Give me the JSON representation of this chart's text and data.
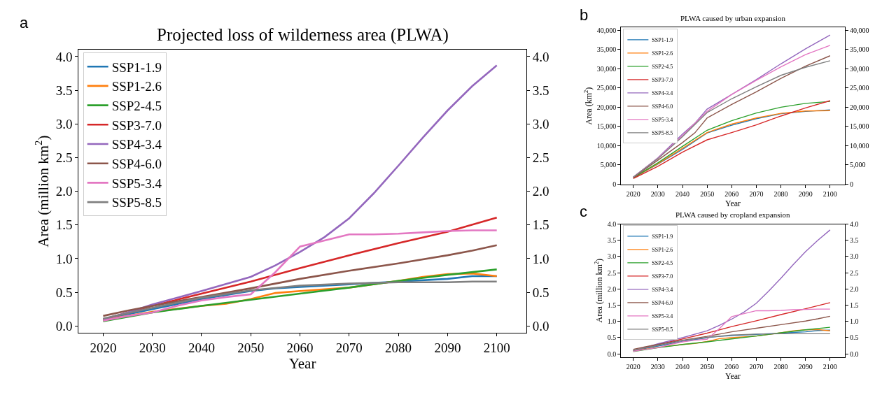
{
  "chart_data": [
    {
      "type": "line",
      "title": "Projected loss of wilderness area (PLWA)",
      "xlabel": "Year",
      "ylabel": "Area (million km$^{2}$)",
      "annotations": [
        "a"
      ],
      "legend": "top left",
      "xlim": [
        2015,
        2106
      ],
      "xticks": [
        2020,
        2030,
        2040,
        2050,
        2060,
        2070,
        2080,
        2090,
        2100
      ],
      "ylim": [
        -0.1,
        4.1
      ],
      "yticks": [
        {
          "value": 0,
          "label": "0.0"
        },
        {
          "value": 0.5,
          "label": "0.5"
        },
        {
          "value": 1,
          "label": "1.0"
        },
        {
          "value": 1.5,
          "label": "1.5"
        },
        {
          "value": 2,
          "label": "2.0"
        },
        {
          "value": 2.5,
          "label": "2.5"
        },
        {
          "value": 3,
          "label": "3.0"
        },
        {
          "value": 3.5,
          "label": "3.5"
        },
        {
          "value": 4,
          "label": "4.0"
        }
      ],
      "y2lim": [
        -0.1,
        4.1
      ],
      "y2ticks": [
        {
          "value": 0,
          "label": "0.0"
        },
        {
          "value": 0.5,
          "label": "0.5"
        },
        {
          "value": 1,
          "label": "1.0"
        },
        {
          "value": 1.5,
          "label": "1.5"
        },
        {
          "value": 2,
          "label": "2.0"
        },
        {
          "value": 2.5,
          "label": "2.5"
        },
        {
          "value": 3,
          "label": "3.0"
        },
        {
          "value": 3.5,
          "label": "3.5"
        },
        {
          "value": 4,
          "label": "4.0"
        }
      ],
      "series": [
        {
          "name": "SSP1-1.9",
          "color": "#1f77b4",
          "x": [
            2020,
            2030,
            2040,
            2050,
            2055,
            2060,
            2070,
            2080,
            2090,
            2095,
            2100
          ],
          "values": [
            0.1,
            0.25,
            0.4,
            0.52,
            0.56,
            0.58,
            0.62,
            0.66,
            0.7,
            0.74,
            0.74
          ]
        },
        {
          "name": "SSP1-2.6",
          "color": "#ff7f0e",
          "x": [
            2020,
            2030,
            2040,
            2045,
            2050,
            2055,
            2060,
            2070,
            2080,
            2085,
            2090,
            2095,
            2100
          ],
          "values": [
            0.09,
            0.21,
            0.3,
            0.33,
            0.4,
            0.49,
            0.52,
            0.57,
            0.67,
            0.73,
            0.77,
            0.78,
            0.74
          ]
        },
        {
          "name": "SSP2-4.5",
          "color": "#2ca02c",
          "x": [
            2020,
            2030,
            2040,
            2050,
            2060,
            2070,
            2080,
            2090,
            2100
          ],
          "values": [
            0.07,
            0.2,
            0.3,
            0.39,
            0.48,
            0.57,
            0.67,
            0.76,
            0.84
          ]
        },
        {
          "name": "SSP3-7.0",
          "color": "#d62728",
          "x": [
            2020,
            2030,
            2040,
            2050,
            2060,
            2070,
            2080,
            2090,
            2100
          ],
          "values": [
            0.1,
            0.3,
            0.48,
            0.66,
            0.86,
            1.05,
            1.23,
            1.4,
            1.61
          ]
        },
        {
          "name": "SSP4-3.4",
          "color": "#9467bd",
          "x": [
            2020,
            2025,
            2030,
            2040,
            2050,
            2055,
            2060,
            2065,
            2070,
            2075,
            2080,
            2085,
            2090,
            2095,
            2100
          ],
          "values": [
            0.1,
            0.2,
            0.32,
            0.52,
            0.73,
            0.9,
            1.1,
            1.32,
            1.6,
            1.97,
            2.38,
            2.8,
            3.2,
            3.56,
            3.87
          ]
        },
        {
          "name": "SSP4-6.0",
          "color": "#8c564b",
          "x": [
            2020,
            2025,
            2030,
            2040,
            2050,
            2055,
            2060,
            2070,
            2080,
            2090,
            2095,
            2100
          ],
          "values": [
            0.15,
            0.23,
            0.3,
            0.43,
            0.56,
            0.63,
            0.7,
            0.82,
            0.93,
            1.05,
            1.12,
            1.2
          ]
        },
        {
          "name": "SSP5-3.4",
          "color": "#e377c2",
          "x": [
            2020,
            2025,
            2030,
            2035,
            2040,
            2045,
            2050,
            2055,
            2060,
            2065,
            2070,
            2075,
            2080,
            2085,
            2090,
            2095,
            2100
          ],
          "values": [
            0.08,
            0.15,
            0.2,
            0.3,
            0.38,
            0.43,
            0.47,
            0.8,
            1.18,
            1.27,
            1.36,
            1.36,
            1.37,
            1.39,
            1.41,
            1.42,
            1.42
          ]
        },
        {
          "name": "SSP5-8.5",
          "color": "#7f7f7f",
          "x": [
            2020,
            2030,
            2040,
            2050,
            2060,
            2070,
            2080,
            2090,
            2095,
            2100
          ],
          "values": [
            0.11,
            0.27,
            0.42,
            0.53,
            0.6,
            0.63,
            0.65,
            0.65,
            0.66,
            0.66
          ]
        }
      ]
    },
    {
      "type": "line",
      "title": "PLWA caused by urban expansion",
      "xlabel": "Year",
      "ylabel": "Area (km$^{2}$)",
      "annotations": [
        "b"
      ],
      "legend": "top left",
      "xlim": [
        2015,
        2106
      ],
      "xticks": [
        2020,
        2030,
        2040,
        2050,
        2060,
        2070,
        2080,
        2090,
        2100
      ],
      "ylim": [
        -200,
        40800
      ],
      "yticks": [
        0,
        {
          "value": 5000,
          "label": "5,000"
        },
        {
          "value": 10000,
          "label": "10,000"
        },
        {
          "value": 15000,
          "label": "15,000"
        },
        {
          "value": 20000,
          "label": "20,000"
        },
        {
          "value": 25000,
          "label": "25,000"
        },
        {
          "value": 30000,
          "label": "30,000"
        },
        {
          "value": 35000,
          "label": "35,000"
        },
        {
          "value": 40000,
          "label": "40,000"
        }
      ],
      "y2lim": [
        -200,
        40800
      ],
      "y2ticks": [
        0,
        {
          "value": 5000,
          "label": "5,000"
        },
        {
          "value": 10000,
          "label": "10,000"
        },
        {
          "value": 15000,
          "label": "15,000"
        },
        {
          "value": 20000,
          "label": "20,000"
        },
        {
          "value": 25000,
          "label": "25,000"
        },
        {
          "value": 30000,
          "label": "30,000"
        },
        {
          "value": 35000,
          "label": "35,000"
        },
        {
          "value": 40000,
          "label": "40,000"
        }
      ],
      "series": [
        {
          "name": "SSP1-1.9",
          "color": "#1f77b4",
          "x": [
            2020,
            2030,
            2040,
            2050,
            2060,
            2070,
            2080,
            2090,
            2100
          ],
          "values": [
            1600,
            5200,
            9000,
            13300,
            15300,
            17000,
            18300,
            18900,
            19300
          ]
        },
        {
          "name": "SSP1-2.6",
          "color": "#ff7f0e",
          "x": [
            2020,
            2030,
            2040,
            2050,
            2060,
            2070,
            2080,
            2090,
            2100
          ],
          "values": [
            1600,
            5300,
            9300,
            13400,
            15600,
            17200,
            18400,
            19000,
            19100
          ]
        },
        {
          "name": "SSP2-4.5",
          "color": "#2ca02c",
          "x": [
            2020,
            2030,
            2040,
            2050,
            2060,
            2070,
            2080,
            2090,
            2100
          ],
          "values": [
            1600,
            5500,
            9800,
            14000,
            16500,
            18500,
            20000,
            21000,
            21500
          ]
        },
        {
          "name": "SSP3-7.0",
          "color": "#d62728",
          "x": [
            2020,
            2030,
            2040,
            2050,
            2060,
            2070,
            2080,
            2090,
            2100
          ],
          "values": [
            1400,
            4600,
            8300,
            11500,
            13400,
            15400,
            17700,
            19800,
            21700
          ]
        },
        {
          "name": "SSP4-3.4",
          "color": "#9467bd",
          "x": [
            2020,
            2030,
            2040,
            2045,
            2050,
            2060,
            2070,
            2080,
            2090,
            2100
          ],
          "values": [
            1800,
            6800,
            13000,
            15800,
            19500,
            23300,
            27200,
            31300,
            35200,
            38800
          ]
        },
        {
          "name": "SSP4-6.0",
          "color": "#8c564b",
          "x": [
            2020,
            2030,
            2040,
            2045,
            2050,
            2060,
            2070,
            2080,
            2090,
            2100
          ],
          "values": [
            1700,
            6200,
            10800,
            13300,
            17200,
            20700,
            24000,
            27500,
            30700,
            33400
          ]
        },
        {
          "name": "SSP5-3.4",
          "color": "#e377c2",
          "x": [
            2020,
            2030,
            2040,
            2050,
            2060,
            2070,
            2080,
            2090,
            2100
          ],
          "values": [
            1800,
            6700,
            12600,
            18900,
            23300,
            27000,
            30500,
            33700,
            36100
          ]
        },
        {
          "name": "SSP5-8.5",
          "color": "#7f7f7f",
          "x": [
            2020,
            2030,
            2040,
            2050,
            2060,
            2070,
            2080,
            2090,
            2100
          ],
          "values": [
            1800,
            6600,
            12300,
            18600,
            22200,
            25300,
            28300,
            30400,
            32100
          ]
        }
      ]
    },
    {
      "type": "line",
      "title": "PLWA caused by cropland expansion",
      "xlabel": "Year",
      "ylabel": "Area (million km$^{2}$)",
      "annotations": [
        "c"
      ],
      "legend": "top left",
      "xlim": [
        2015,
        2106
      ],
      "xticks": [
        2020,
        2030,
        2040,
        2050,
        2060,
        2070,
        2080,
        2090,
        2100
      ],
      "ylim": [
        -0.1,
        4.0
      ],
      "yticks": [
        {
          "value": 0,
          "label": "0.0"
        },
        {
          "value": 0.5,
          "label": "0.5"
        },
        {
          "value": 1,
          "label": "1.0"
        },
        {
          "value": 1.5,
          "label": "1.5"
        },
        {
          "value": 2,
          "label": "2.0"
        },
        {
          "value": 2.5,
          "label": "2.5"
        },
        {
          "value": 3,
          "label": "3.0"
        },
        {
          "value": 3.5,
          "label": "3.5"
        },
        {
          "value": 4,
          "label": "4.0"
        }
      ],
      "y2lim": [
        -0.1,
        4.0
      ],
      "y2ticks": [
        {
          "value": 0,
          "label": "0.0"
        },
        {
          "value": 0.5,
          "label": "0.5"
        },
        {
          "value": 1,
          "label": "1.0"
        },
        {
          "value": 1.5,
          "label": "1.5"
        },
        {
          "value": 2,
          "label": "2.0"
        },
        {
          "value": 2.5,
          "label": "2.5"
        },
        {
          "value": 3,
          "label": "3.0"
        },
        {
          "value": 3.5,
          "label": "3.5"
        },
        {
          "value": 4,
          "label": "4.0"
        }
      ],
      "series": [
        {
          "name": "SSP1-1.9",
          "color": "#1f77b4",
          "x": [
            2020,
            2030,
            2040,
            2050,
            2055,
            2060,
            2070,
            2080,
            2090,
            2095,
            2100
          ],
          "values": [
            0.1,
            0.24,
            0.38,
            0.5,
            0.54,
            0.56,
            0.6,
            0.64,
            0.68,
            0.72,
            0.73
          ]
        },
        {
          "name": "SSP1-2.6",
          "color": "#ff7f0e",
          "x": [
            2020,
            2030,
            2040,
            2045,
            2050,
            2055,
            2060,
            2070,
            2080,
            2085,
            2090,
            2095,
            2100
          ],
          "values": [
            0.09,
            0.2,
            0.29,
            0.32,
            0.38,
            0.47,
            0.5,
            0.55,
            0.65,
            0.71,
            0.74,
            0.75,
            0.71
          ]
        },
        {
          "name": "SSP2-4.5",
          "color": "#2ca02c",
          "x": [
            2020,
            2030,
            2040,
            2050,
            2060,
            2070,
            2080,
            2090,
            2100
          ],
          "values": [
            0.07,
            0.19,
            0.29,
            0.37,
            0.46,
            0.55,
            0.65,
            0.74,
            0.82
          ]
        },
        {
          "name": "SSP3-7.0",
          "color": "#d62728",
          "x": [
            2020,
            2030,
            2040,
            2050,
            2060,
            2070,
            2080,
            2090,
            2100
          ],
          "values": [
            0.1,
            0.29,
            0.46,
            0.64,
            0.84,
            1.02,
            1.21,
            1.39,
            1.58
          ]
        },
        {
          "name": "SSP4-3.4",
          "color": "#9467bd",
          "x": [
            2020,
            2025,
            2030,
            2040,
            2050,
            2055,
            2060,
            2065,
            2070,
            2075,
            2080,
            2085,
            2090,
            2095,
            2100
          ],
          "values": [
            0.1,
            0.2,
            0.31,
            0.5,
            0.71,
            0.88,
            1.07,
            1.29,
            1.56,
            1.93,
            2.33,
            2.75,
            3.15,
            3.5,
            3.82
          ]
        },
        {
          "name": "SSP4-6.0",
          "color": "#8c564b",
          "x": [
            2020,
            2025,
            2030,
            2040,
            2050,
            2055,
            2060,
            2070,
            2080,
            2090,
            2095,
            2100
          ],
          "values": [
            0.14,
            0.22,
            0.29,
            0.42,
            0.54,
            0.61,
            0.68,
            0.79,
            0.9,
            1.01,
            1.08,
            1.16
          ]
        },
        {
          "name": "SSP5-3.4",
          "color": "#e377c2",
          "x": [
            2020,
            2025,
            2030,
            2035,
            2040,
            2045,
            2050,
            2055,
            2060,
            2065,
            2070,
            2075,
            2080,
            2085,
            2090,
            2095,
            2100
          ],
          "values": [
            0.08,
            0.14,
            0.19,
            0.29,
            0.37,
            0.42,
            0.45,
            0.78,
            1.15,
            1.24,
            1.33,
            1.33,
            1.34,
            1.36,
            1.37,
            1.38,
            1.38
          ]
        },
        {
          "name": "SSP5-8.5",
          "color": "#7f7f7f",
          "x": [
            2020,
            2030,
            2040,
            2050,
            2060,
            2070,
            2080,
            2090,
            2095,
            2100
          ],
          "values": [
            0.11,
            0.26,
            0.41,
            0.51,
            0.58,
            0.61,
            0.62,
            0.62,
            0.62,
            0.62
          ]
        }
      ]
    }
  ]
}
